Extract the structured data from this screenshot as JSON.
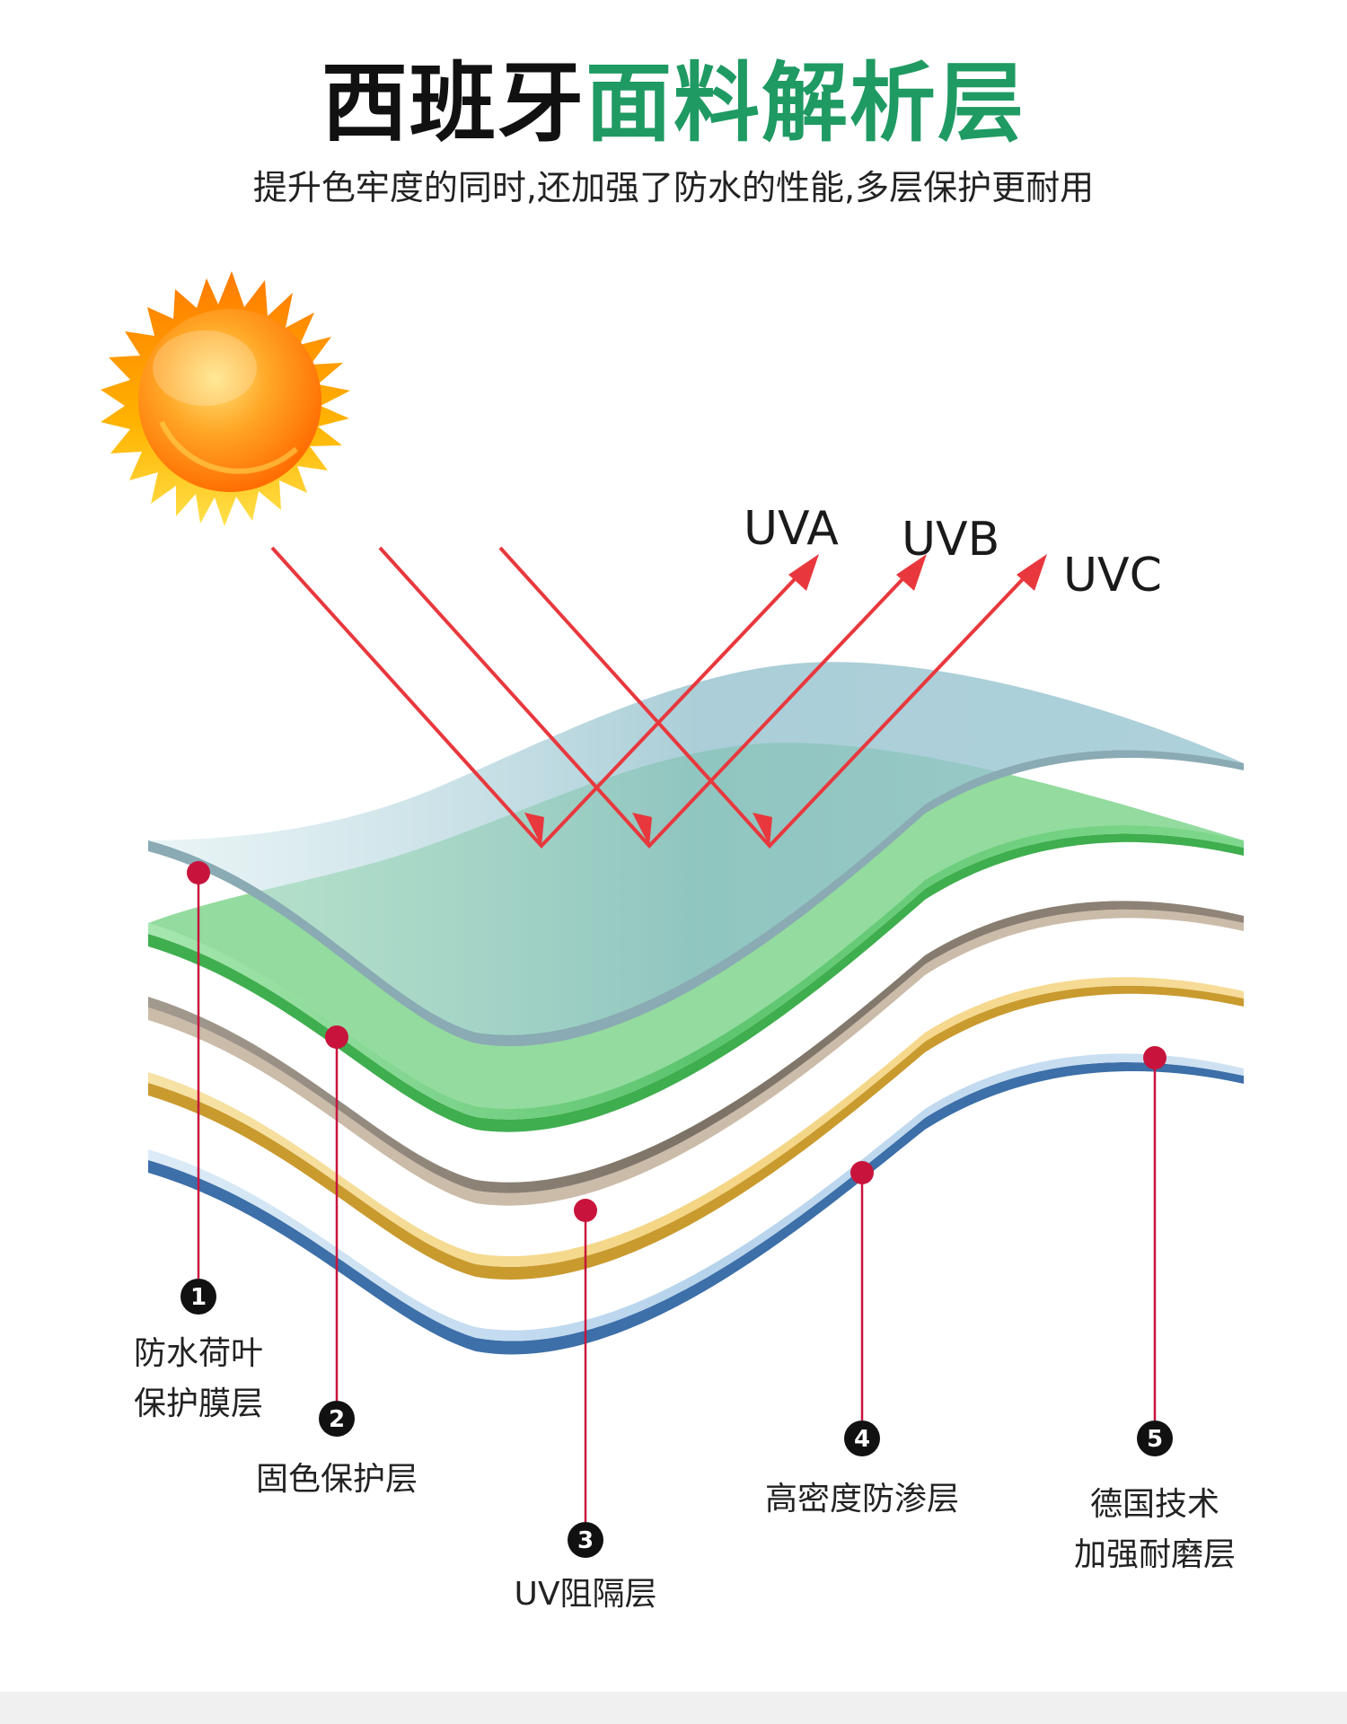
{
  "header": {
    "title_dark": "西班牙",
    "title_green": "面料解析层",
    "subtitle": "提升色牢度的同时,还加强了防水的性能,多层保护更耐用"
  },
  "rays": [
    {
      "label": "UVA",
      "color": "#e8383d"
    },
    {
      "label": "UVB",
      "color": "#e8383d"
    },
    {
      "label": "UVC",
      "color": "#e8383d"
    }
  ],
  "layers": [
    {
      "number": "1",
      "line1": "防水荷叶",
      "line2": "保护膜层",
      "color": "#9fc9d4"
    },
    {
      "number": "2",
      "line1": "固色保护层",
      "line2": "",
      "color": "#6fcf7e"
    },
    {
      "number": "3",
      "line1": "UV阻隔层",
      "line2": "",
      "color": "#8a7f72"
    },
    {
      "number": "4",
      "line1": "高密度防渗层",
      "line2": "",
      "color": "#f3d98c"
    },
    {
      "number": "5",
      "line1": "德国技术",
      "line2": "加强耐磨层",
      "color": "#bcd8ef"
    }
  ],
  "colors": {
    "title_green": "#1f9a63",
    "marker": "#c8143c"
  },
  "icons": {
    "sun": "sun-icon"
  }
}
